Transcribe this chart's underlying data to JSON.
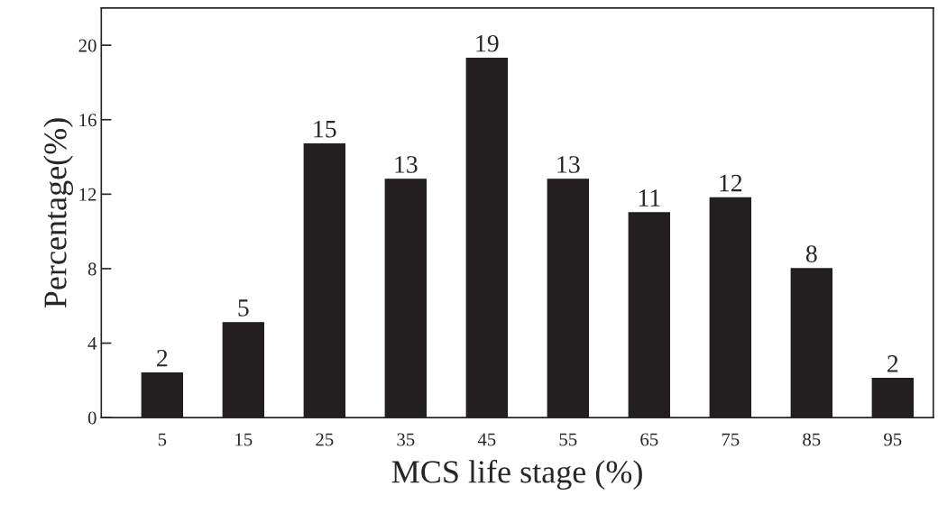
{
  "chart_data": {
    "type": "bar",
    "xlabel": "MCS life stage (%)",
    "ylabel": "Percentage(%)",
    "categories": [
      "5",
      "15",
      "25",
      "35",
      "45",
      "55",
      "65",
      "75",
      "85",
      "95"
    ],
    "values": [
      2.4,
      5.1,
      14.7,
      12.8,
      19.3,
      12.8,
      11.0,
      11.8,
      8.0,
      2.1
    ],
    "value_labels": [
      "2",
      "5",
      "15",
      "13",
      "19",
      "13",
      "11",
      "12",
      "8",
      "2"
    ],
    "color": "#231f20",
    "ylim": [
      0,
      22
    ],
    "yticks": [
      0,
      4,
      8,
      12,
      16,
      20
    ],
    "grid": false,
    "legend": false
  }
}
